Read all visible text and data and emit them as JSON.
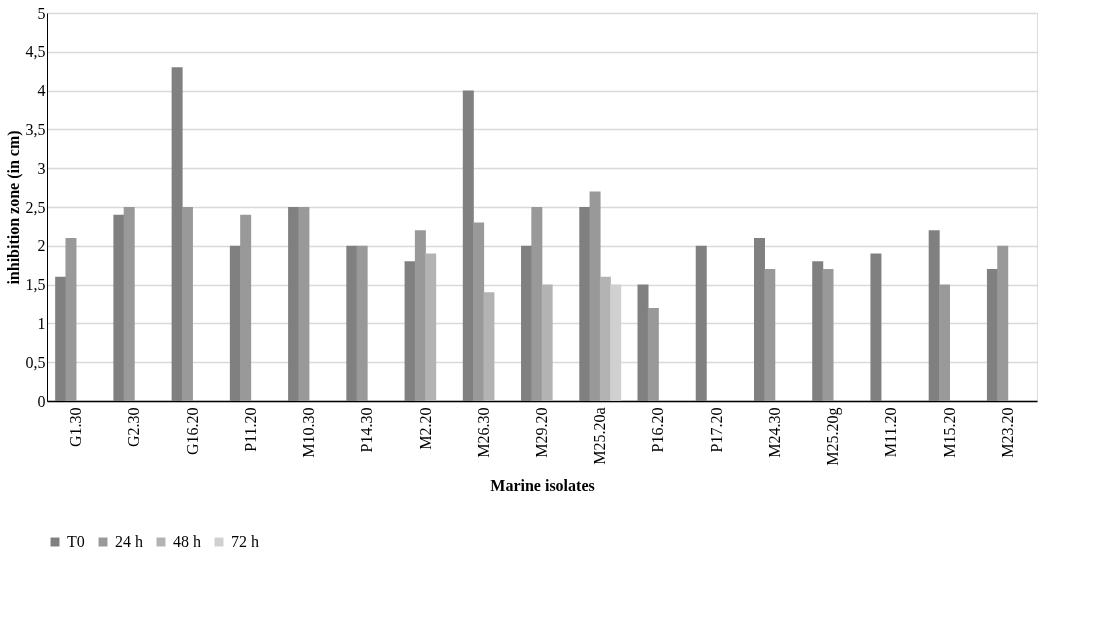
{
  "chart_data": {
    "type": "bar",
    "xlabel": "Marine isolates",
    "ylabel": "inhibition zone (in cm)",
    "categories": [
      "G1.30",
      "G2.30",
      "G16.20",
      "P11.20",
      "M10.30",
      "P14.30",
      "M2.20",
      "M26.30",
      "M29.20",
      "M25.20a",
      "P16.20",
      "P17.20",
      "M24.30",
      "M25.20g",
      "M11.20",
      "M15.20",
      "M23.20"
    ],
    "series": [
      {
        "name": "T0",
        "color": "#808080",
        "values": [
          1.6,
          2.4,
          4.3,
          2.0,
          2.5,
          2.0,
          1.8,
          4.0,
          2.0,
          2.5,
          1.5,
          2.0,
          2.1,
          1.8,
          1.9,
          2.2,
          1.7
        ]
      },
      {
        "name": "24 h",
        "color": "#999999",
        "values": [
          2.1,
          2.5,
          2.5,
          2.4,
          2.5,
          2.0,
          2.2,
          2.3,
          2.5,
          2.7,
          1.2,
          null,
          1.7,
          1.7,
          null,
          1.5,
          2.0
        ]
      },
      {
        "name": "48 h",
        "color": "#b3b3b3",
        "values": [
          null,
          null,
          null,
          null,
          null,
          null,
          1.9,
          1.4,
          1.5,
          1.6,
          null,
          null,
          null,
          null,
          null,
          null,
          null
        ]
      },
      {
        "name": "72 h",
        "color": "#d0d0d0",
        "values": [
          null,
          null,
          null,
          null,
          null,
          null,
          null,
          null,
          null,
          1.5,
          null,
          null,
          null,
          null,
          null,
          null,
          null
        ]
      }
    ],
    "ylim": [
      0,
      5
    ],
    "yticks": [
      0,
      {
        "value": 0.5,
        "label": "0,5"
      },
      1,
      {
        "value": 1.5,
        "label": "1,5"
      },
      2,
      {
        "value": 2.5,
        "label": "2,5"
      },
      3,
      {
        "value": 3.5,
        "label": "3,5"
      },
      4,
      {
        "value": 4.5,
        "label": "4,5"
      },
      5
    ],
    "grid": "y",
    "legend": "bottom"
  }
}
